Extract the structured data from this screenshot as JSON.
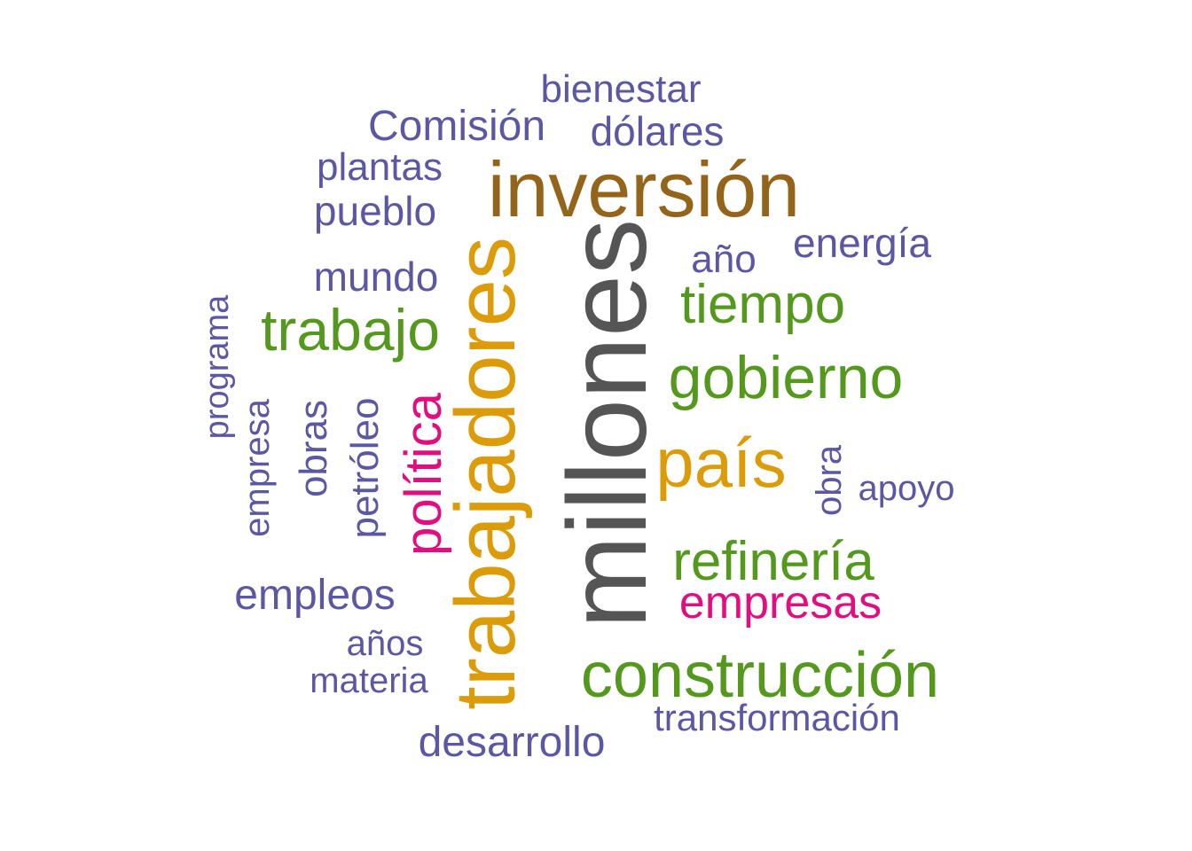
{
  "palette": {
    "purple": "#5c57a3",
    "brown": "#94641a",
    "gray": "#555555",
    "orange": "#dc9c0a",
    "green": "#54981e",
    "magenta": "#df0f7f"
  },
  "words": [
    {
      "text": "millones",
      "color": "gray",
      "rotated": true
    },
    {
      "text": "trabajadores",
      "color": "orange",
      "rotated": true
    },
    {
      "text": "inversión",
      "color": "brown",
      "rotated": false
    },
    {
      "text": "construcción",
      "color": "green",
      "rotated": false
    },
    {
      "text": "país",
      "color": "orange",
      "rotated": false
    },
    {
      "text": "gobierno",
      "color": "green",
      "rotated": false
    },
    {
      "text": "trabajo",
      "color": "green",
      "rotated": false
    },
    {
      "text": "refinería",
      "color": "green",
      "rotated": false
    },
    {
      "text": "tiempo",
      "color": "green",
      "rotated": false
    },
    {
      "text": "política",
      "color": "magenta",
      "rotated": true
    },
    {
      "text": "empresas",
      "color": "magenta",
      "rotated": false
    },
    {
      "text": "desarrollo",
      "color": "purple",
      "rotated": false
    },
    {
      "text": "Comisión",
      "color": "purple",
      "rotated": false
    },
    {
      "text": "empleos",
      "color": "purple",
      "rotated": false
    },
    {
      "text": "energía",
      "color": "purple",
      "rotated": false
    },
    {
      "text": "pueblo",
      "color": "purple",
      "rotated": false
    },
    {
      "text": "mundo",
      "color": "purple",
      "rotated": false
    },
    {
      "text": "dólares",
      "color": "purple",
      "rotated": false
    },
    {
      "text": "bienestar",
      "color": "purple",
      "rotated": false
    },
    {
      "text": "plantas",
      "color": "purple",
      "rotated": false
    },
    {
      "text": "transformación",
      "color": "purple",
      "rotated": false
    },
    {
      "text": "año",
      "color": "purple",
      "rotated": false
    },
    {
      "text": "apoyo",
      "color": "purple",
      "rotated": false
    },
    {
      "text": "años",
      "color": "purple",
      "rotated": false
    },
    {
      "text": "materia",
      "color": "purple",
      "rotated": false
    },
    {
      "text": "obras",
      "color": "purple",
      "rotated": true
    },
    {
      "text": "petróleo",
      "color": "purple",
      "rotated": true
    },
    {
      "text": "empresa",
      "color": "purple",
      "rotated": true
    },
    {
      "text": "programa",
      "color": "purple",
      "rotated": true
    },
    {
      "text": "obra",
      "color": "purple",
      "rotated": true
    }
  ]
}
